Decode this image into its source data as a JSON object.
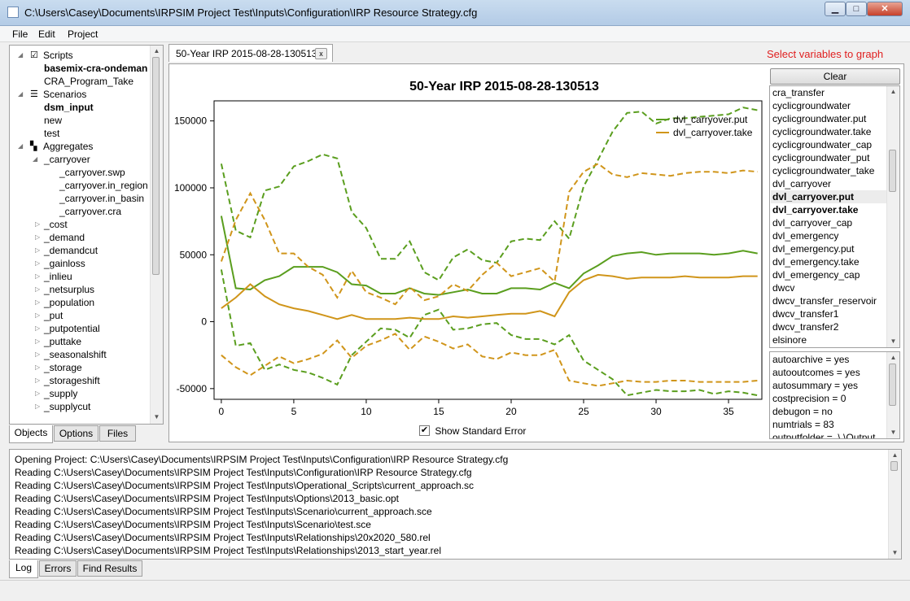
{
  "window": {
    "title": "C:\\Users\\Casey\\Documents\\IRPSIM Project Test\\Inputs\\Configuration\\IRP Resource Strategy.cfg",
    "minimize": "▁",
    "maximize": "□",
    "close": "✕"
  },
  "menu": [
    "File",
    "Edit",
    "Project"
  ],
  "tree": {
    "scripts_label": "Scripts",
    "scripts": [
      "basemix-cra-ondeman",
      "CRA_Program_Take"
    ],
    "scenarios_label": "Scenarios",
    "scenarios": [
      "dsm_input",
      "new",
      "test"
    ],
    "aggregates_label": "Aggregates",
    "carryover_label": "_carryover",
    "carryover_children": [
      "_carryover.swp",
      "_carryover.in_region",
      "_carryover.in_basin",
      "_carryover.cra"
    ],
    "aggregates": [
      "_cost",
      "_demand",
      "_demandcut",
      "_gainloss",
      "_inlieu",
      "_netsurplus",
      "_population",
      "_put",
      "_putpotential",
      "_puttake",
      "_seasonalshift",
      "_storage",
      "_storageshift",
      "_supply",
      "_supplycut"
    ]
  },
  "left_tabs": [
    "Objects",
    "Options",
    "Files"
  ],
  "doc_tab": {
    "label": "50-Year IRP 2015-08-28-130513",
    "close": "x"
  },
  "hint": "Select variables to graph",
  "clear_label": "Clear",
  "variables": [
    "cra_transfer",
    "cyclicgroundwater",
    "cyclicgroundwater.put",
    "cyclicgroundwater.take",
    "cyclicgroundwater_cap",
    "cyclicgroundwater_put",
    "cyclicgroundwater_take",
    "dvl_carryover",
    "dvl_carryover.put",
    "dvl_carryover.take",
    "dvl_carryover_cap",
    "dvl_emergency",
    "dvl_emergency.put",
    "dvl_emergency.take",
    "dvl_emergency_cap",
    "dwcv",
    "dwcv_transfer_reservoir",
    "dwcv_transfer1",
    "dwcv_transfer2",
    "elsinore"
  ],
  "selected_variables": [
    "dvl_carryover.put",
    "dvl_carryover.take"
  ],
  "options": [
    "autoarchive = yes",
    "autooutcomes = yes",
    "autosummary = yes",
    "costprecision = 0",
    "debugon = no",
    "numtrials = 83",
    "outputfolder = .\\.\\Output"
  ],
  "show_std_error_label": "Show Standard Error",
  "log_lines": [
    "Opening Project: C:\\Users\\Casey\\Documents\\IRPSIM Project Test\\Inputs\\Configuration\\IRP Resource Strategy.cfg",
    "Reading C:\\Users\\Casey\\Documents\\IRPSIM Project Test\\Inputs\\Configuration\\IRP Resource Strategy.cfg",
    "Reading C:\\Users\\Casey\\Documents\\IRPSIM Project Test\\Inputs\\Operational_Scripts\\current_approach.sc",
    "Reading C:\\Users\\Casey\\Documents\\IRPSIM Project Test\\Inputs\\Options\\2013_basic.opt",
    "Reading C:\\Users\\Casey\\Documents\\IRPSIM Project Test\\Inputs\\Scenario\\current_approach.sce",
    "Reading C:\\Users\\Casey\\Documents\\IRPSIM Project Test\\Inputs\\Scenario\\test.sce",
    "Reading C:\\Users\\Casey\\Documents\\IRPSIM Project Test\\Inputs\\Relationships\\20x2020_580.rel",
    "Reading C:\\Users\\Casey\\Documents\\IRPSIM Project Test\\Inputs\\Relationships\\2013_start_year.rel"
  ],
  "bottom_tabs": [
    "Log",
    "Errors",
    "Find Results"
  ],
  "colors": {
    "put": "#5a9e1e",
    "take": "#d0951a",
    "hint": "#e02020"
  },
  "chart_data": {
    "type": "line",
    "title": "50-Year IRP 2015-08-28-130513",
    "xlabel": "",
    "ylabel": "",
    "xlim": [
      -0.5,
      37.3
    ],
    "ylim": [
      -58000,
      165000
    ],
    "xticks": [
      0,
      5,
      10,
      15,
      20,
      25,
      30,
      35
    ],
    "yticks": [
      -50000,
      0,
      50000,
      100000,
      150000
    ],
    "ytick_labels": [
      "-50000",
      "0",
      "50000",
      "100000",
      "150000"
    ],
    "legend": "top-right",
    "x": [
      0,
      1,
      2,
      3,
      4,
      5,
      6,
      7,
      8,
      9,
      10,
      11,
      12,
      13,
      14,
      15,
      16,
      17,
      18,
      19,
      20,
      21,
      22,
      23,
      24,
      25,
      26,
      27,
      28,
      29,
      30,
      31,
      32,
      33,
      34,
      35,
      36,
      37
    ],
    "series": [
      {
        "name": "dvl_carryover.put",
        "mean": [
          79000,
          25000,
          24000,
          31000,
          34000,
          41000,
          41000,
          41000,
          37000,
          28000,
          27000,
          21000,
          21000,
          25000,
          21000,
          20000,
          22000,
          24000,
          21000,
          21000,
          25000,
          25000,
          24000,
          29000,
          25000,
          36000,
          42000,
          49000,
          51000,
          52000,
          50000,
          51000,
          51000,
          51000,
          50000,
          51000,
          53000,
          51000
        ],
        "upper": [
          118000,
          68000,
          63000,
          98000,
          101000,
          116000,
          120000,
          125000,
          122000,
          82000,
          70000,
          47000,
          47000,
          60000,
          37000,
          31000,
          48000,
          54000,
          46000,
          44000,
          60000,
          62000,
          61000,
          75000,
          62000,
          101000,
          121000,
          142000,
          156000,
          157000,
          148000,
          152000,
          152000,
          153000,
          154000,
          155000,
          160000,
          158000
        ],
        "lower": [
          39000,
          -18000,
          -16000,
          -36000,
          -32000,
          -36000,
          -38000,
          -42000,
          -47000,
          -25000,
          -15000,
          -5000,
          -6000,
          -12000,
          5000,
          9000,
          -6000,
          -5000,
          -2000,
          -1000,
          -10000,
          -13000,
          -13000,
          -17000,
          -10000,
          -29000,
          -36000,
          -43000,
          -55000,
          -53000,
          -51000,
          -52000,
          -52000,
          -51000,
          -54000,
          -52000,
          -53000,
          -55000
        ]
      },
      {
        "name": "dvl_carryover.take",
        "mean": [
          10000,
          18000,
          28000,
          19000,
          13000,
          10000,
          8000,
          5000,
          2000,
          5000,
          2000,
          2000,
          2000,
          3000,
          2000,
          2000,
          4000,
          3000,
          4000,
          5000,
          6000,
          6000,
          8000,
          4000,
          22000,
          31000,
          35000,
          34000,
          32000,
          33000,
          33000,
          33000,
          34000,
          33000,
          33000,
          33000,
          34000,
          34000
        ],
        "upper": [
          45000,
          76000,
          96000,
          76000,
          51000,
          51000,
          41000,
          35000,
          18000,
          38000,
          22000,
          18000,
          13000,
          26000,
          16000,
          19000,
          28000,
          23000,
          35000,
          44000,
          34000,
          37000,
          40000,
          30000,
          97000,
          112000,
          118000,
          110000,
          108000,
          111000,
          110000,
          109000,
          111000,
          112000,
          112000,
          111000,
          113000,
          112000
        ],
        "lower": [
          -25000,
          -34000,
          -40000,
          -33000,
          -26000,
          -31000,
          -28000,
          -24000,
          -14000,
          -27000,
          -18000,
          -14000,
          -9000,
          -21000,
          -11000,
          -15000,
          -20000,
          -17000,
          -26000,
          -28000,
          -23000,
          -25000,
          -25000,
          -21000,
          -44000,
          -46000,
          -48000,
          -46000,
          -44000,
          -45000,
          -45000,
          -44000,
          -44000,
          -45000,
          -45000,
          -45000,
          -45000,
          -44000
        ]
      }
    ]
  }
}
